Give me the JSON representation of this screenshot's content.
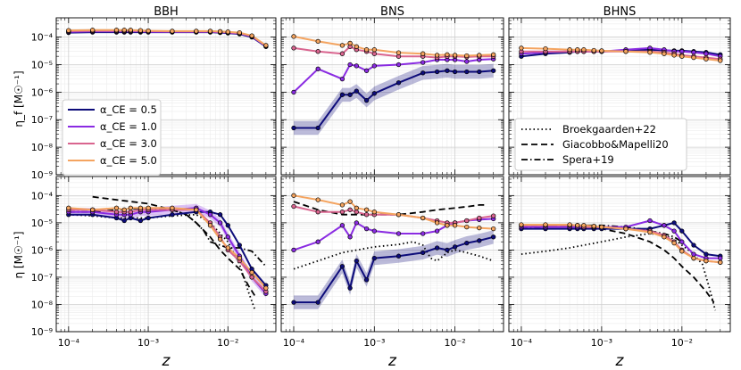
{
  "figure": {
    "x_label": "z",
    "y_labels": [
      "η_f [M☉⁻¹]",
      "η [M☉⁻¹]"
    ],
    "panel_titles": [
      "BBH",
      "BNS",
      "BHNS"
    ],
    "legend_alpha": [
      "α_CE = 0.5",
      "α_CE = 1.0",
      "α_CE = 3.0",
      "α_CE = 5.0"
    ],
    "legend_models": [
      "Broekgaarden+22",
      "Giacobbo&Mapelli20",
      "Spera+19"
    ]
  },
  "chart_data": {
    "type": "line",
    "xscale": "log",
    "yscale": "log",
    "xlim": [
      7e-05,
      0.04
    ],
    "ylim": [
      1e-09,
      0.0005
    ],
    "x_ticks": [
      0.0001,
      0.001,
      0.01
    ],
    "x_tick_labels": [
      "10⁻⁴",
      "10⁻³",
      "10⁻²"
    ],
    "y_ticks": [
      1e-09,
      1e-08,
      1e-07,
      1e-06,
      1e-05,
      0.0001
    ],
    "y_tick_labels": [
      "10⁻⁹",
      "10⁻⁸",
      "10⁻⁷",
      "10⁻⁶",
      "10⁻⁵",
      "10⁻⁴"
    ],
    "grid": true,
    "colors": {
      "alpha_0.5": "#0d0c7a",
      "alpha_1.0": "#8a2be2",
      "alpha_3.0": "#d9658f",
      "alpha_5.0": "#f4a460"
    },
    "z": [
      0.0001,
      0.0002,
      0.0004,
      0.0005,
      0.0006,
      0.0008,
      0.001,
      0.002,
      0.004,
      0.006,
      0.008,
      0.01,
      0.014,
      0.02,
      0.03
    ],
    "panels": [
      {
        "row": 0,
        "col": 0,
        "series": [
          {
            "name": "α_CE = 0.5",
            "y": [
              0.000145,
              0.00015,
              0.00015,
              0.00015,
              0.00015,
              0.00015,
              0.00015,
              0.00015,
              0.00015,
              0.00015,
              0.000145,
              0.00014,
              0.00013,
              0.0001,
              4.5e-05
            ]
          },
          {
            "name": "α_CE = 1.0",
            "y": [
              0.000155,
              0.00016,
              0.00016,
              0.00016,
              0.00016,
              0.00016,
              0.000155,
              0.000155,
              0.000155,
              0.000155,
              0.00015,
              0.000145,
              0.000135,
              0.000105,
              4.7e-05
            ]
          },
          {
            "name": "α_CE = 3.0",
            "y": [
              0.000165,
              0.00017,
              0.00017,
              0.00017,
              0.00017,
              0.000165,
              0.000165,
              0.00016,
              0.00016,
              0.00016,
              0.000155,
              0.00015,
              0.00014,
              0.00011,
              4.8e-05
            ]
          },
          {
            "name": "α_CE = 5.0",
            "y": [
              0.000175,
              0.00018,
              0.00018,
              0.00018,
              0.00018,
              0.000175,
              0.00017,
              0.000165,
              0.000165,
              0.000165,
              0.00016,
              0.000155,
              0.000145,
              0.000112,
              5e-05
            ]
          }
        ]
      },
      {
        "row": 0,
        "col": 1,
        "series": [
          {
            "name": "α_CE = 0.5",
            "band": 0.25,
            "y": [
              5e-08,
              5e-08,
              8e-07,
              8e-07,
              1.1e-06,
              5e-07,
              9e-07,
              2.2e-06,
              5e-06,
              5.5e-06,
              6e-06,
              5.5e-06,
              5.5e-06,
              5.5e-06,
              6e-06
            ]
          },
          {
            "name": "α_CE = 1.0",
            "y": [
              1e-06,
              7e-06,
              3e-06,
              1e-05,
              9e-06,
              6e-06,
              9e-06,
              1e-05,
              1.2e-05,
              1.5e-05,
              1.5e-05,
              1.5e-05,
              1.3e-05,
              1.5e-05,
              1.6e-05
            ]
          },
          {
            "name": "α_CE = 3.0",
            "y": [
              4e-05,
              3e-05,
              2.5e-05,
              4.5e-05,
              3.5e-05,
              3e-05,
              2.5e-05,
              2e-05,
              2e-05,
              1.8e-05,
              2e-05,
              2e-05,
              1.9e-05,
              2e-05,
              2e-05
            ]
          },
          {
            "name": "α_CE = 5.0",
            "y": [
              0.000105,
              7e-05,
              5e-05,
              6e-05,
              4.5e-05,
              3.5e-05,
              3.5e-05,
              2.7e-05,
              2.5e-05,
              2.2e-05,
              2.3e-05,
              2.2e-05,
              2.1e-05,
              2.2e-05,
              2.3e-05
            ]
          }
        ]
      },
      {
        "row": 0,
        "col": 2,
        "series": [
          {
            "name": "α_CE = 0.5",
            "y": [
              2e-05,
              2.5e-05,
              2.8e-05,
              3e-05,
              3e-05,
              3e-05,
              3e-05,
              3.2e-05,
              3.5e-05,
              3.3e-05,
              3.2e-05,
              3.2e-05,
              3e-05,
              2.8e-05,
              2.3e-05
            ]
          },
          {
            "name": "α_CE = 1.0",
            "y": [
              2.5e-05,
              2.8e-05,
              3e-05,
              3e-05,
              3e-05,
              3e-05,
              3e-05,
              3.5e-05,
              4e-05,
              3.5e-05,
              3e-05,
              3e-05,
              2.8e-05,
              2.5e-05,
              2e-05
            ]
          },
          {
            "name": "α_CE = 3.0",
            "y": [
              3e-05,
              3e-05,
              3e-05,
              3e-05,
              3e-05,
              3e-05,
              3e-05,
              3e-05,
              3e-05,
              2.8e-05,
              2.5e-05,
              2.2e-05,
              2e-05,
              1.8e-05,
              1.6e-05
            ]
          },
          {
            "name": "α_CE = 5.0",
            "y": [
              4e-05,
              3.8e-05,
              3.5e-05,
              3.5e-05,
              3.5e-05,
              3.3e-05,
              3.2e-05,
              3e-05,
              2.8e-05,
              2.5e-05,
              2.2e-05,
              2e-05,
              1.8e-05,
              1.6e-05,
              1.4e-05
            ]
          }
        ]
      },
      {
        "row": 1,
        "col": 0,
        "series": [
          {
            "name": "α_CE = 0.5",
            "y": [
              2e-05,
              2e-05,
              1.5e-05,
              1.2e-05,
              1.5e-05,
              1.2e-05,
              1.5e-05,
              2e-05,
              2.5e-05,
              2.5e-05,
              2e-05,
              8e-06,
              1.5e-06,
              2e-07,
              5e-08
            ]
          },
          {
            "name": "α_CE = 1.0",
            "band": 0.15,
            "y": [
              2.5e-05,
              2.5e-05,
              2e-05,
              2e-05,
              2e-05,
              2.5e-05,
              2.5e-05,
              3e-05,
              3.5e-05,
              2e-05,
              1e-05,
              3e-06,
              6e-07,
              1e-07,
              2.5e-08
            ]
          },
          {
            "name": "α_CE = 3.0",
            "y": [
              3e-05,
              3e-05,
              2.5e-05,
              2.5e-05,
              2.5e-05,
              3e-05,
              3e-05,
              3e-05,
              3e-05,
              1e-05,
              3e-06,
              1e-06,
              4e-07,
              1e-07,
              3e-08
            ]
          },
          {
            "name": "α_CE = 5.0",
            "y": [
              3.5e-05,
              3e-05,
              3.5e-05,
              3e-05,
              3.5e-05,
              3.5e-05,
              3.5e-05,
              3.5e-05,
              3e-05,
              8e-06,
              2.5e-06,
              1.2e-06,
              5e-07,
              1.5e-07,
              4e-08
            ]
          }
        ]
      },
      {
        "row": 1,
        "col": 1,
        "series": [
          {
            "name": "α_CE = 0.5",
            "band": 0.25,
            "y": [
              1.2e-08,
              1.2e-08,
              2.5e-07,
              4e-08,
              4e-07,
              8e-08,
              5e-07,
              6e-07,
              8e-07,
              1.2e-06,
              1e-06,
              1.3e-06,
              1.8e-06,
              2.2e-06,
              3e-06
            ]
          },
          {
            "name": "α_CE = 1.0",
            "y": [
              1e-06,
              2e-06,
              8e-06,
              3e-06,
              1e-05,
              6e-06,
              5e-06,
              4e-06,
              4e-06,
              5e-06,
              8e-06,
              1e-05,
              1.2e-05,
              1.3e-05,
              1.4e-05
            ]
          },
          {
            "name": "α_CE = 3.0",
            "y": [
              4e-05,
              2.5e-05,
              2.5e-05,
              3e-05,
              2.5e-05,
              2e-05,
              2e-05,
              2e-05,
              1.5e-05,
              1.2e-05,
              1e-05,
              1e-05,
              1.2e-05,
              1.5e-05,
              1.8e-05
            ]
          },
          {
            "name": "α_CE = 5.0",
            "y": [
              0.0001,
              7e-05,
              4.5e-05,
              6e-05,
              3.5e-05,
              3e-05,
              2.5e-05,
              2e-05,
              1.5e-05,
              1e-05,
              8e-06,
              8e-06,
              7e-06,
              6.5e-06,
              6e-06
            ]
          }
        ]
      },
      {
        "row": 1,
        "col": 2,
        "series": [
          {
            "name": "α_CE = 0.5",
            "y": [
              6e-06,
              6e-06,
              6e-06,
              6e-06,
              6e-06,
              6e-06,
              6e-06,
              6e-06,
              6e-06,
              8e-06,
              1e-05,
              5e-06,
              1.5e-06,
              7e-07,
              6e-07
            ]
          },
          {
            "name": "α_CE = 1.0",
            "y": [
              7e-06,
              7e-06,
              7e-06,
              7e-06,
              7e-06,
              7e-06,
              7e-06,
              7e-06,
              1.2e-05,
              8e-06,
              5e-06,
              2e-06,
              7e-07,
              5e-07,
              5e-07
            ]
          },
          {
            "name": "α_CE = 3.0",
            "y": [
              8e-06,
              8e-06,
              8e-06,
              8e-06,
              7e-06,
              7e-06,
              7e-06,
              6e-06,
              5e-06,
              3.5e-06,
              2e-06,
              1e-06,
              5e-07,
              4e-07,
              3.5e-07
            ]
          },
          {
            "name": "α_CE = 5.0",
            "y": [
              8.5e-06,
              8.5e-06,
              8.5e-06,
              8e-06,
              8e-06,
              7.5e-06,
              7e-06,
              6e-06,
              4.5e-06,
              3e-06,
              1.8e-06,
              9e-07,
              5e-07,
              4e-07,
              3.5e-07
            ]
          }
        ]
      }
    ],
    "reference_curves": [
      {
        "name": "Broekgaarden+22",
        "dash": "dotted",
        "panels": [
          {
            "col": 0,
            "x": [
              0.0001,
              0.0002,
              0.0004,
              0.001,
              0.002,
              0.004,
              0.006,
              0.01,
              0.014,
              0.018,
              0.022
            ],
            "y": [
              2e-05,
              1.8e-05,
              1.5e-05,
              1.5e-05,
              1.8e-05,
              2e-05,
              1e-05,
              2e-06,
              3e-07,
              3e-08,
              6e-09
            ]
          },
          {
            "col": 1,
            "x": [
              0.0001,
              0.0002,
              0.0004,
              0.001,
              0.002,
              0.003,
              0.004,
              0.005,
              0.006,
              0.008,
              0.01,
              0.014,
              0.02,
              0.03
            ],
            "y": [
              2e-07,
              4e-07,
              8e-07,
              1.3e-06,
              1.6e-06,
              2e-06,
              1.5e-06,
              5e-07,
              4e-07,
              8e-07,
              1e-06,
              8e-07,
              6e-07,
              4e-07
            ]
          },
          {
            "col": 2,
            "x": [
              0.0001,
              0.0002,
              0.0004,
              0.001,
              0.002,
              0.004,
              0.006,
              0.008,
              0.01,
              0.014,
              0.018,
              0.022,
              0.026
            ],
            "y": [
              7e-07,
              9e-07,
              1.2e-06,
              2e-06,
              3e-06,
              4e-06,
              3.5e-06,
              2.5e-06,
              1.5e-06,
              7e-07,
              3e-07,
              4e-08,
              6e-09
            ]
          }
        ]
      },
      {
        "name": "Giacobbo&Mapelli20",
        "dash": "dashed",
        "panels": [
          {
            "col": 0,
            "x": [
              0.0002,
              0.0004,
              0.001,
              0.002,
              0.003,
              0.004,
              0.006,
              0.008,
              0.01,
              0.014,
              0.018,
              0.022
            ],
            "y": [
              9e-05,
              7e-05,
              5e-05,
              3e-05,
              2e-05,
              1e-05,
              3e-06,
              1e-06,
              5e-07,
              2e-07,
              5e-08,
              2e-08
            ]
          },
          {
            "col": 1,
            "x": [
              0.0001,
              0.0002,
              0.0004,
              0.001,
              0.002,
              0.004,
              0.006,
              0.01,
              0.015,
              0.02,
              0.025
            ],
            "y": [
              6e-05,
              3e-05,
              2e-05,
              2e-05,
              2e-05,
              2.5e-05,
              3e-05,
              3.5e-05,
              4e-05,
              4.5e-05,
              4.5e-05
            ]
          },
          {
            "col": 2,
            "x": [
              0.0001,
              0.0002,
              0.0004,
              0.001,
              0.002,
              0.004,
              0.006,
              0.008,
              0.01,
              0.014,
              0.02,
              0.025
            ],
            "y": [
              8e-06,
              8e-06,
              7e-06,
              6e-06,
              4e-06,
              2e-06,
              1e-06,
              5e-07,
              2.5e-07,
              1e-07,
              3e-08,
              1.2e-08
            ]
          }
        ]
      },
      {
        "name": "Spera+19",
        "dash": "dashdot",
        "panels": [
          {
            "col": 0,
            "x": [
              0.0001,
              0.0002,
              0.0004,
              0.001,
              0.002,
              0.003,
              0.004,
              0.005,
              0.006,
              0.008,
              0.01,
              0.014,
              0.02,
              0.03
            ],
            "y": [
              2.5e-05,
              2.5e-05,
              3e-05,
              3.5e-05,
              3e-05,
              2e-05,
              1e-05,
              5e-06,
              2e-06,
              1.5e-06,
              1.2e-06,
              1.2e-06,
              9e-07,
              2.5e-07
            ]
          },
          {
            "col": 2,
            "x": [
              0.0001,
              0.0002,
              0.0004,
              0.001,
              0.002,
              0.003,
              0.004,
              0.006,
              0.008,
              0.01
            ],
            "y": [
              6e-06,
              7e-06,
              8e-06,
              8e-06,
              7e-06,
              6e-06,
              5e-06,
              4e-06,
              3e-06,
              2e-06
            ]
          }
        ]
      }
    ]
  }
}
